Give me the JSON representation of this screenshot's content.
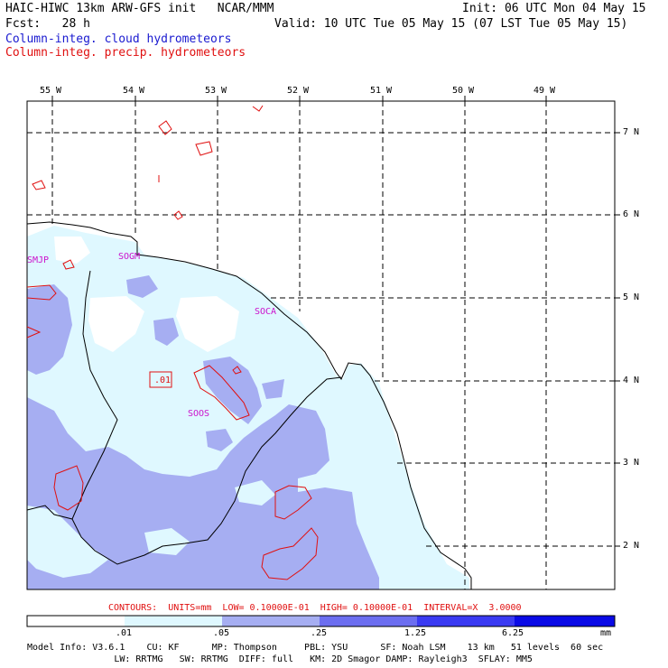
{
  "header": {
    "line1_left": "HAIC-HIWC 13km ARW-GFS init   NCAR/MMM",
    "line1_right": "Init: 06 UTC Mon 04 May 15",
    "line2_left": "Fcst:   28 h",
    "line2_right": "Valid: 10 UTC Tue 05 May 15 (07 LST Tue 05 May 15)",
    "field1": "Column-integ. cloud hydrometeors",
    "field2": "Column-integ. precip. hydrometeors"
  },
  "colors": {
    "cloud_light": "#dff8ff",
    "cloud_mid": "#a6aef2",
    "cloud_dark": "#6c6ef0",
    "cloud_darker": "#3a3af2",
    "cloud_darkest": "#0a0ae6",
    "precip_contour": "#e01010",
    "station_label": "#cc10cc",
    "header_blue": "#1a1ad0",
    "header_red": "#e01010"
  },
  "longitude_labels": [
    "55 W",
    "54 W",
    "53 W",
    "52 W",
    "51 W",
    "50 W",
    "49 W"
  ],
  "latitude_labels": [
    "7 N",
    "6 N",
    "5 N",
    "4 N",
    "3 N",
    "2 N"
  ],
  "stations": [
    "SMJP",
    "SOGM",
    "SOCA",
    "SOOS"
  ],
  "contour_label": ".01",
  "contour_info": "CONTOURS:  UNITS=mm  LOW= 0.10000E-01  HIGH= 0.10000E-01  INTERVAL=X  3.0000",
  "colorbar": {
    "ticks": [
      ".01",
      ".05",
      ".25",
      "1.25",
      "6.25"
    ],
    "unit": "mm"
  },
  "model_info": {
    "line1": "Model Info: V3.6.1    CU: KF      MP: Thompson     PBL: YSU      SF: Noah LSM    13 km   51 levels  60 sec",
    "line2": "                LW: RRTMG   SW: RRTMG  DIFF: full   KM: 2D Smagor DAMP: Rayleigh3  SFLAY: MM5"
  }
}
